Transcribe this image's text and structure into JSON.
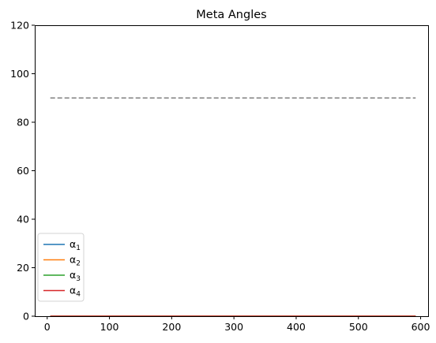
{
  "chart_data": {
    "type": "line",
    "title": "Meta Angles",
    "xlabel": "",
    "ylabel": "",
    "xlim": [
      -20,
      612
    ],
    "ylim": [
      0,
      120
    ],
    "x_ticks": [
      0,
      100,
      200,
      300,
      400,
      500,
      600
    ],
    "y_ticks": [
      0,
      20,
      40,
      60,
      80,
      100,
      120
    ],
    "grid": false,
    "legend_position": "lower-left",
    "series": [
      {
        "name": "α",
        "subscript": "1",
        "color": "#1f77b4",
        "x": [
          5,
          592
        ],
        "y": [
          0,
          0
        ]
      },
      {
        "name": "α",
        "subscript": "2",
        "color": "#ff7f0e",
        "x": [
          5,
          592
        ],
        "y": [
          0,
          0
        ]
      },
      {
        "name": "α",
        "subscript": "3",
        "color": "#2ca02c",
        "x": [
          5,
          592
        ],
        "y": [
          0,
          0
        ]
      },
      {
        "name": "α",
        "subscript": "4",
        "color": "#d62728",
        "x": [
          5,
          592
        ],
        "y": [
          0,
          0
        ]
      }
    ],
    "reference_lines": [
      {
        "orientation": "horizontal",
        "y": 90,
        "x": [
          5,
          592
        ],
        "style": "dashed",
        "color": "#808080"
      }
    ]
  }
}
